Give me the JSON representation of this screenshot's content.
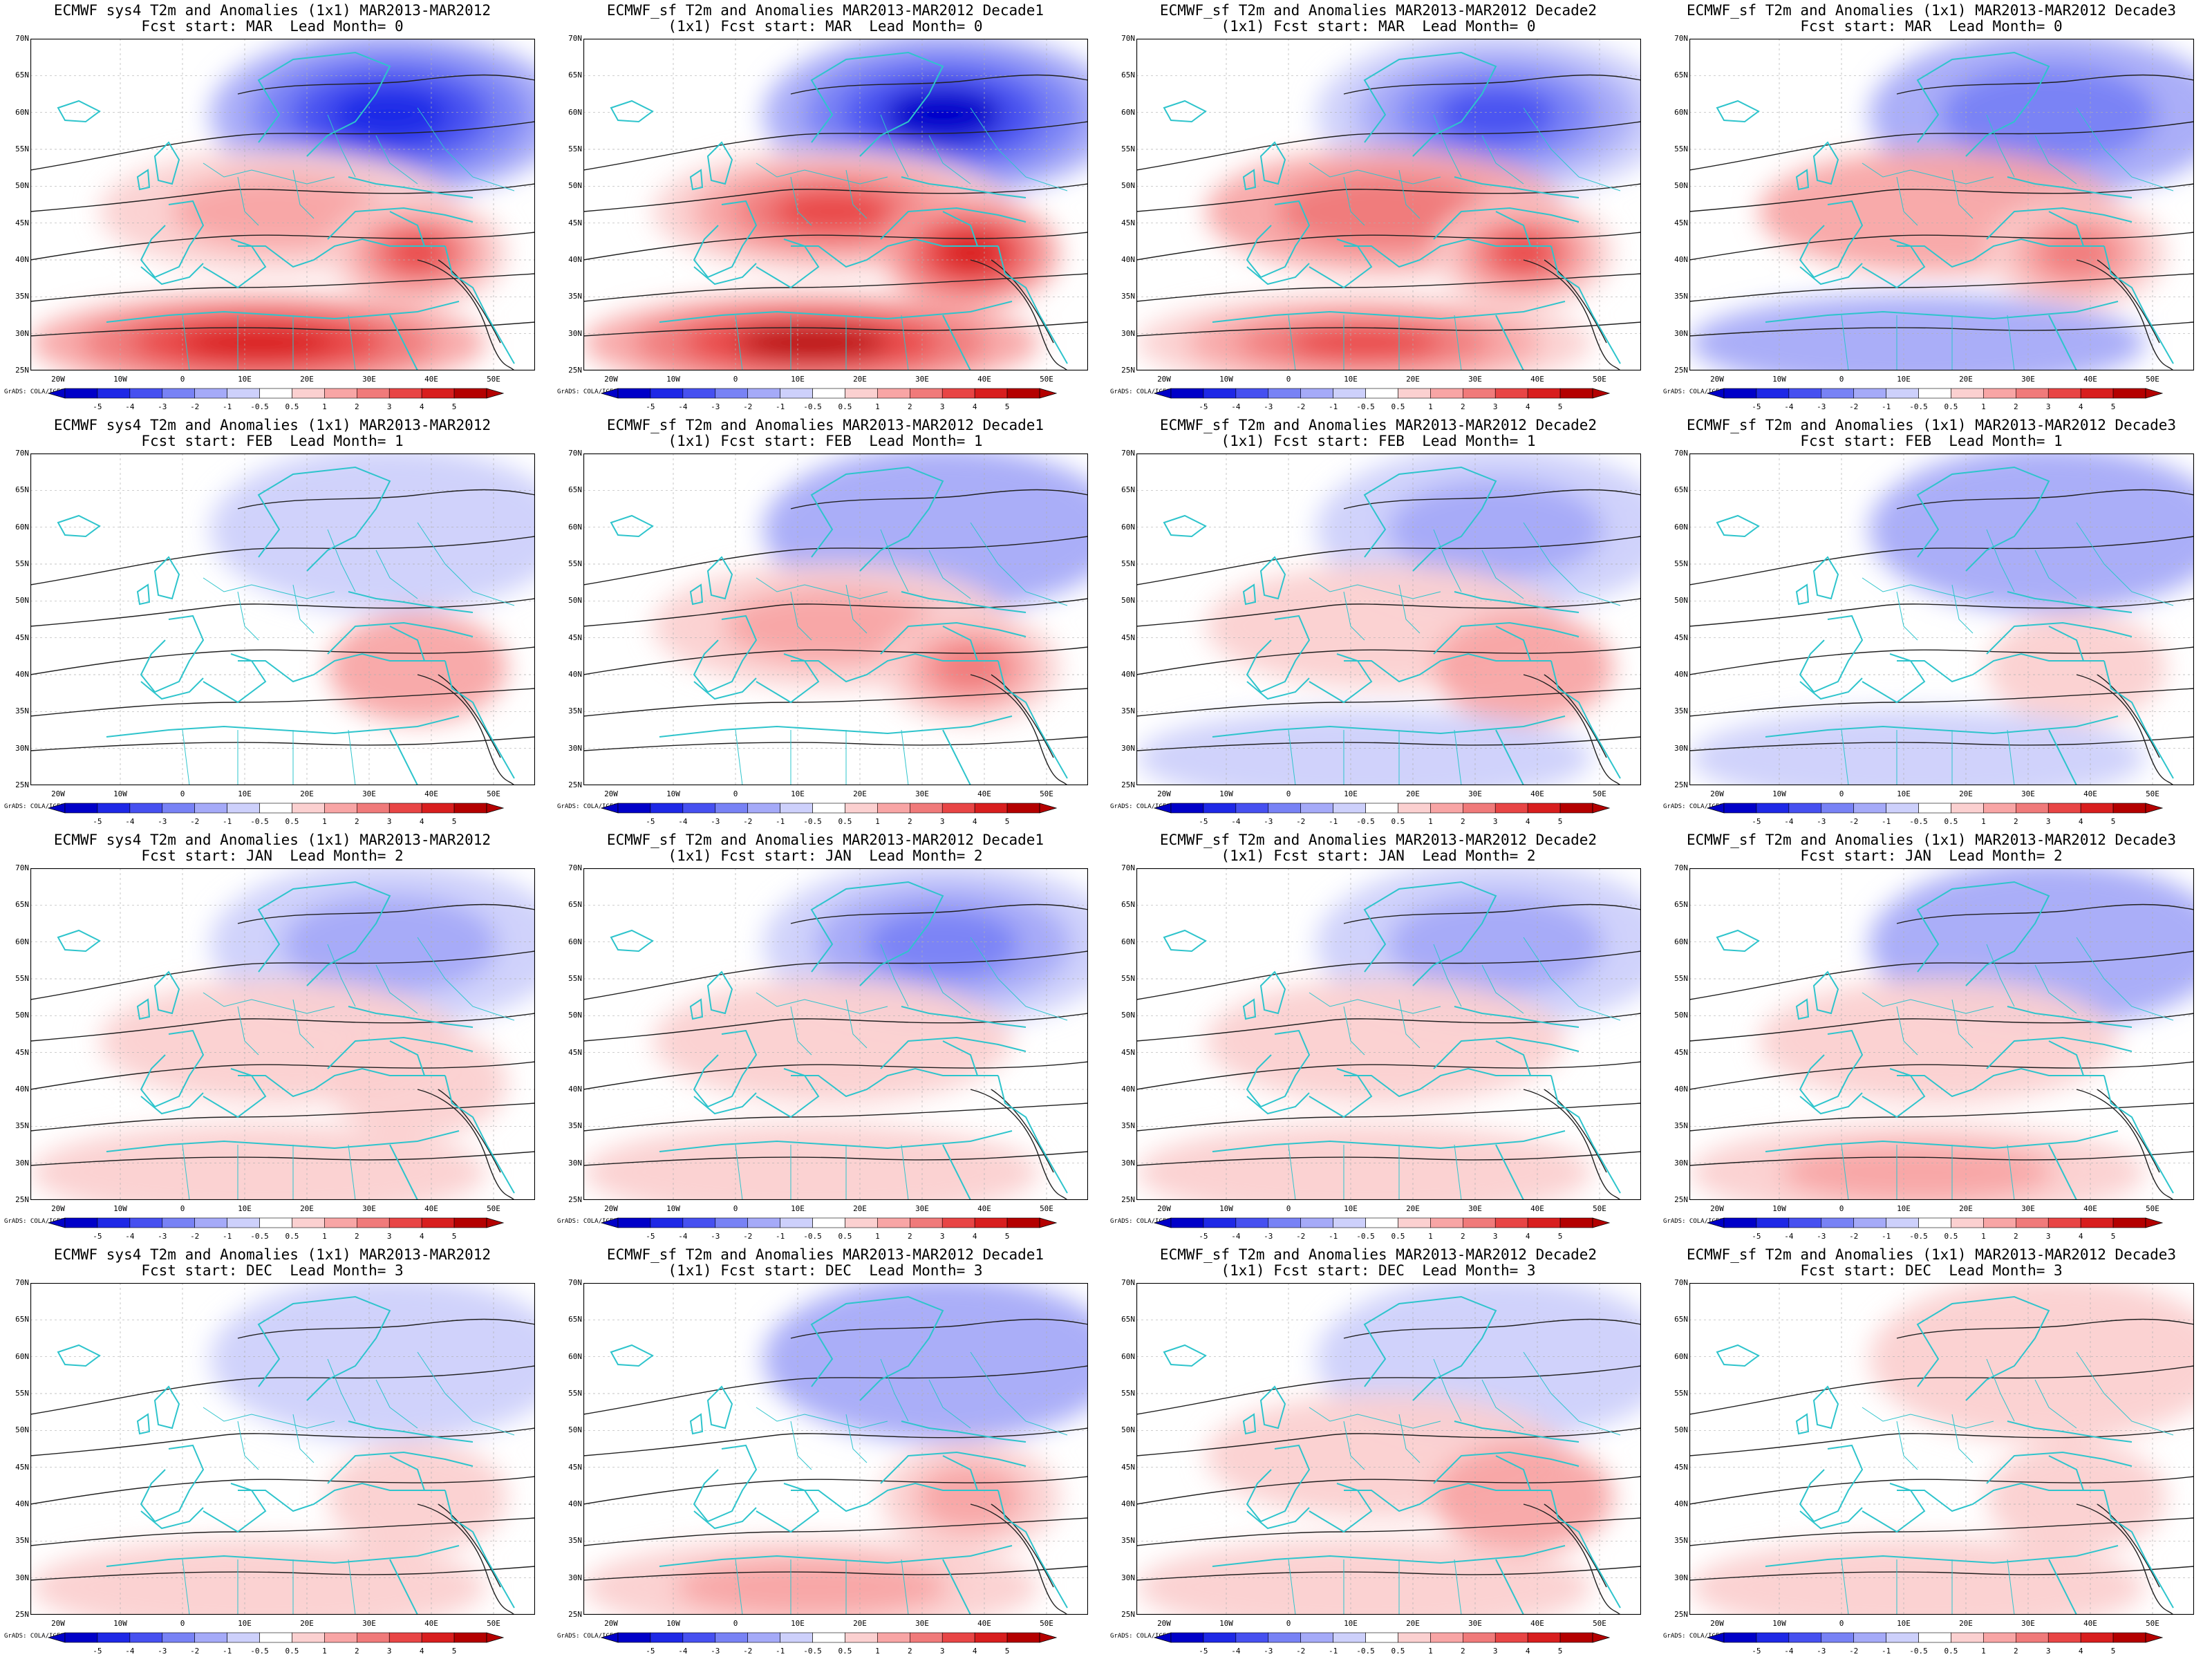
{
  "figure": {
    "palette": {
      "neg": [
        "#0000c8",
        "#1e28e6",
        "#4650f0",
        "#7882f5",
        "#a5aaf8",
        "#cdd0fb"
      ],
      "neutral": "#ffffff",
      "pos": [
        "#fbd0d0",
        "#f8a5a5",
        "#f07a7a",
        "#e84545",
        "#d81e1e",
        "#b40000"
      ],
      "coast": "#2ec4cc",
      "contour": "#202020"
    },
    "lat_labels": [
      "70N",
      "65N",
      "60N",
      "55N",
      "50N",
      "45N",
      "40N",
      "35N",
      "30N",
      "25N"
    ],
    "lon_labels": [
      "20W",
      "10W",
      "0",
      "10E",
      "20E",
      "30E",
      "40E",
      "50E"
    ],
    "colorbar_labels": [
      "-5",
      "-4",
      "-3",
      "-2",
      "-1",
      "-0.5",
      "0.5",
      "1",
      "2",
      "3",
      "4",
      "5"
    ],
    "grads_credit": "GrADS: COLA/IGES"
  },
  "panels": [
    {
      "title": "ECMWF sys4 T2m and Anomalies (1x1) MAR2013-MAR2012\nFcst start: MAR  Lead Month= 0",
      "anom": [
        -4.5,
        1.5,
        3.5,
        4.0
      ],
      "cold_north": true
    },
    {
      "title": "ECMWF_sf T2m and Anomalies MAR2013-MAR2012 Decade1\n(1x1) Fcst start: MAR  Lead Month= 0",
      "anom": [
        -5.0,
        3.5,
        4.5,
        5.0
      ],
      "cold_north": true
    },
    {
      "title": "ECMWF_sf T2m and Anomalies MAR2013-MAR2012 Decade2\n(1x1) Fcst start: MAR  Lead Month= 0",
      "anom": [
        -3.5,
        2.0,
        3.5,
        3.5
      ],
      "cold_north": true
    },
    {
      "title": "ECMWF_sf T2m and Anomalies (1x1) MAR2013-MAR2012 Decade3\nFcst start: MAR  Lead Month= 0",
      "anom": [
        -2.0,
        1.0,
        2.5,
        -1.0
      ],
      "cold_north": true
    },
    {
      "title": "ECMWF sys4 T2m and Anomalies (1x1) MAR2013-MAR2012\nFcst start: FEB  Lead Month= 1",
      "anom": [
        -0.8,
        0.3,
        1.0,
        0.2
      ],
      "cold_north": false
    },
    {
      "title": "ECMWF_sf T2m and Anomalies MAR2013-MAR2012 Decade1\n(1x1) Fcst start: FEB  Lead Month= 1",
      "anom": [
        -1.0,
        1.5,
        2.5,
        0.3
      ],
      "cold_north": false
    },
    {
      "title": "ECMWF_sf T2m and Anomalies MAR2013-MAR2012 Decade2\n(1x1) Fcst start: FEB  Lead Month= 1",
      "anom": [
        -1.2,
        0.5,
        1.0,
        -0.6
      ],
      "cold_north": false
    },
    {
      "title": "ECMWF_sf T2m and Anomalies (1x1) MAR2013-MAR2012 Decade3\nFcst start: FEB  Lead Month= 1",
      "anom": [
        -1.0,
        0.3,
        0.8,
        -0.7
      ],
      "cold_north": false
    },
    {
      "title": "ECMWF sys4 T2m and Anomalies (1x1) MAR2013-MAR2012\nFcst start: JAN  Lead Month= 2",
      "anom": [
        -1.5,
        0.7,
        0.5,
        0.6
      ],
      "cold_north": true
    },
    {
      "title": "ECMWF_sf T2m and Anomalies MAR2013-MAR2012 Decade1\n(1x1) Fcst start: JAN  Lead Month= 2",
      "anom": [
        -2.5,
        0.6,
        0.4,
        0.5
      ],
      "cold_north": true
    },
    {
      "title": "ECMWF_sf T2m and Anomalies MAR2013-MAR2012 Decade2\n(1x1) Fcst start: JAN  Lead Month= 2",
      "anom": [
        -1.5,
        0.8,
        0.4,
        0.6
      ],
      "cold_north": true
    },
    {
      "title": "ECMWF_sf T2m and Anomalies (1x1) MAR2013-MAR2012 Decade3\nFcst start: JAN  Lead Month= 2",
      "anom": [
        -1.0,
        0.6,
        0.4,
        1.2
      ],
      "cold_north": true
    },
    {
      "title": "ECMWF sys4 T2m and Anomalies (1x1) MAR2013-MAR2012\nFcst start: DEC  Lead Month= 3",
      "anom": [
        -0.6,
        0.3,
        0.8,
        0.5
      ],
      "cold_north": false
    },
    {
      "title": "ECMWF_sf T2m and Anomalies MAR2013-MAR2012 Decade1\n(1x1) Fcst start: DEC  Lead Month= 3",
      "anom": [
        -1.0,
        0.4,
        1.2,
        1.2
      ],
      "cold_north": false
    },
    {
      "title": "ECMWF_sf T2m and Anomalies MAR2013-MAR2012 Decade2\n(1x1) Fcst start: DEC  Lead Month= 3",
      "anom": [
        -0.8,
        0.5,
        1.0,
        0.7
      ],
      "cold_north": false
    },
    {
      "title": "ECMWF_sf T2m and Anomalies (1x1) MAR2013-MAR2012 Decade3\nFcst start: DEC  Lead Month= 3",
      "anom": [
        0.5,
        0.4,
        0.8,
        0.6
      ],
      "cold_north": false
    }
  ]
}
